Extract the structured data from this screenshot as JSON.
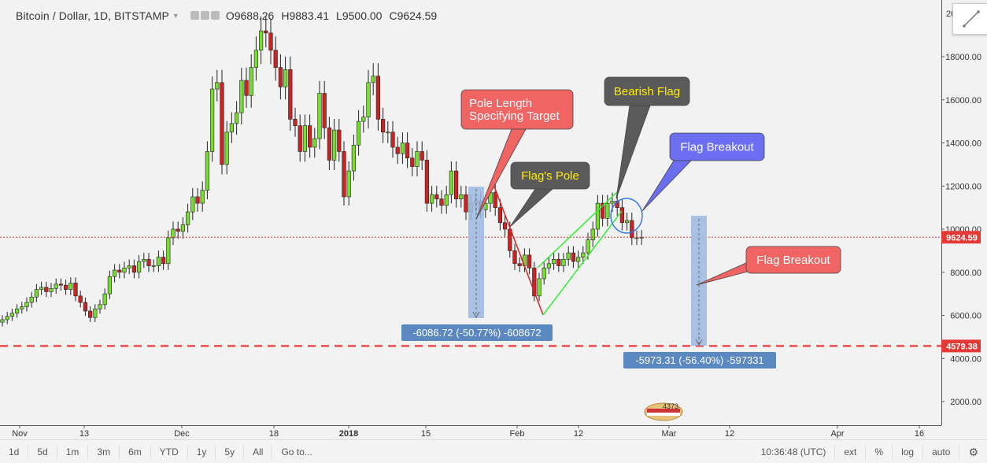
{
  "header": {
    "title": "Bitcoin / Dollar, 1D, BITSTAMP",
    "open": "O9688.26",
    "high": "H9883.41",
    "low": "L9500.00",
    "close": "C9624.59"
  },
  "price_axis": {
    "ticks": [
      "18000.00",
      "16000.00",
      "14000.00",
      "12000.00",
      "10000.00",
      "8000.00",
      "6000.00",
      "4000.00",
      "2000.00"
    ],
    "top_partial": "20",
    "current_price_label": "9624.59",
    "support_label": "4579.38"
  },
  "time_axis": {
    "labels": [
      "Nov",
      "13",
      "Dec",
      "18",
      "2018",
      "15",
      "Feb",
      "12",
      "Mar",
      "12",
      "Apr",
      "16"
    ]
  },
  "toolbar": {
    "left": [
      "1d",
      "5d",
      "1m",
      "3m",
      "6m",
      "YTD",
      "1y",
      "5y",
      "All",
      "Go to..."
    ],
    "time": "10:36:48 (UTC)",
    "right": [
      "ext",
      "%",
      "log",
      "auto"
    ]
  },
  "annotations": {
    "pole_length": [
      "Pole Length",
      "Specifying Target"
    ],
    "bearish_flag": "Bearish Flag",
    "flags_pole": "Flag's Pole",
    "flag_breakout_top": "Flag Breakout",
    "flag_breakout_right": "Flag Breakout",
    "measure_1": "-6086.72 (-50.77%) -608672",
    "measure_2": "-5973.31 (-56.40%) -597331",
    "logo_text": "4373"
  },
  "colors": {
    "up": "#77dd33",
    "down": "#cc2222",
    "current_line": "#e03030",
    "support_line": "#ee2222",
    "callout_red": "#f06464",
    "callout_dark": "#5a5a5a",
    "callout_blue": "#6b6ef0",
    "measure_bg": "#5b88c0",
    "measure_fill": "#9cb8e3"
  },
  "chart_data": {
    "type": "candlestick",
    "title": "Bitcoin / Dollar, 1D, BITSTAMP",
    "y_range": [
      1000,
      20000
    ],
    "y_ticks": [
      2000,
      4000,
      6000,
      8000,
      10000,
      12000,
      14000,
      16000,
      18000
    ],
    "current_price": 9624.59,
    "support_level": 4579.38,
    "x_labels": [
      "Nov",
      "13",
      "Dec",
      "18",
      "2018",
      "15",
      "Feb",
      "12",
      "Mar",
      "12",
      "Apr",
      "16"
    ],
    "closes": [
      5800,
      5950,
      6100,
      6300,
      6400,
      6600,
      6850,
      7200,
      7300,
      7100,
      7250,
      7450,
      7400,
      7200,
      7500,
      6900,
      6600,
      6200,
      5900,
      6300,
      6500,
      7000,
      7800,
      8100,
      8000,
      8200,
      8300,
      8000,
      8500,
      8600,
      8300,
      8300,
      8700,
      8400,
      9600,
      10000,
      9900,
      10200,
      10800,
      11500,
      11200,
      11800,
      13600,
      16500,
      16800,
      13000,
      14500,
      14900,
      15400,
      16900,
      16200,
      17500,
      18300,
      19200,
      19100,
      18300,
      17500,
      16600,
      17400,
      15100,
      14800,
      13600,
      14800,
      13800,
      14200,
      16300,
      14700,
      13200,
      14600,
      13600,
      11500,
      12700,
      13900,
      15000,
      15200,
      16800,
      17100,
      15100,
      14500,
      14500,
      13800,
      13500,
      14000,
      13300,
      12900,
      13600,
      13200,
      11200,
      11600,
      11400,
      11100,
      11600,
      12700,
      11400,
      11600,
      10800,
      11200,
      11300,
      10900,
      11200,
      11700,
      11000,
      10300,
      10000,
      9000,
      8400,
      8300,
      8800,
      8200,
      6900,
      7700,
      8200,
      8400,
      8600,
      8300,
      8600,
      8900,
      8500,
      8700,
      8900,
      9500,
      10000,
      11200,
      10500,
      11200,
      11300,
      11000,
      10300,
      10400,
      9600,
      9600,
      9624
    ]
  }
}
